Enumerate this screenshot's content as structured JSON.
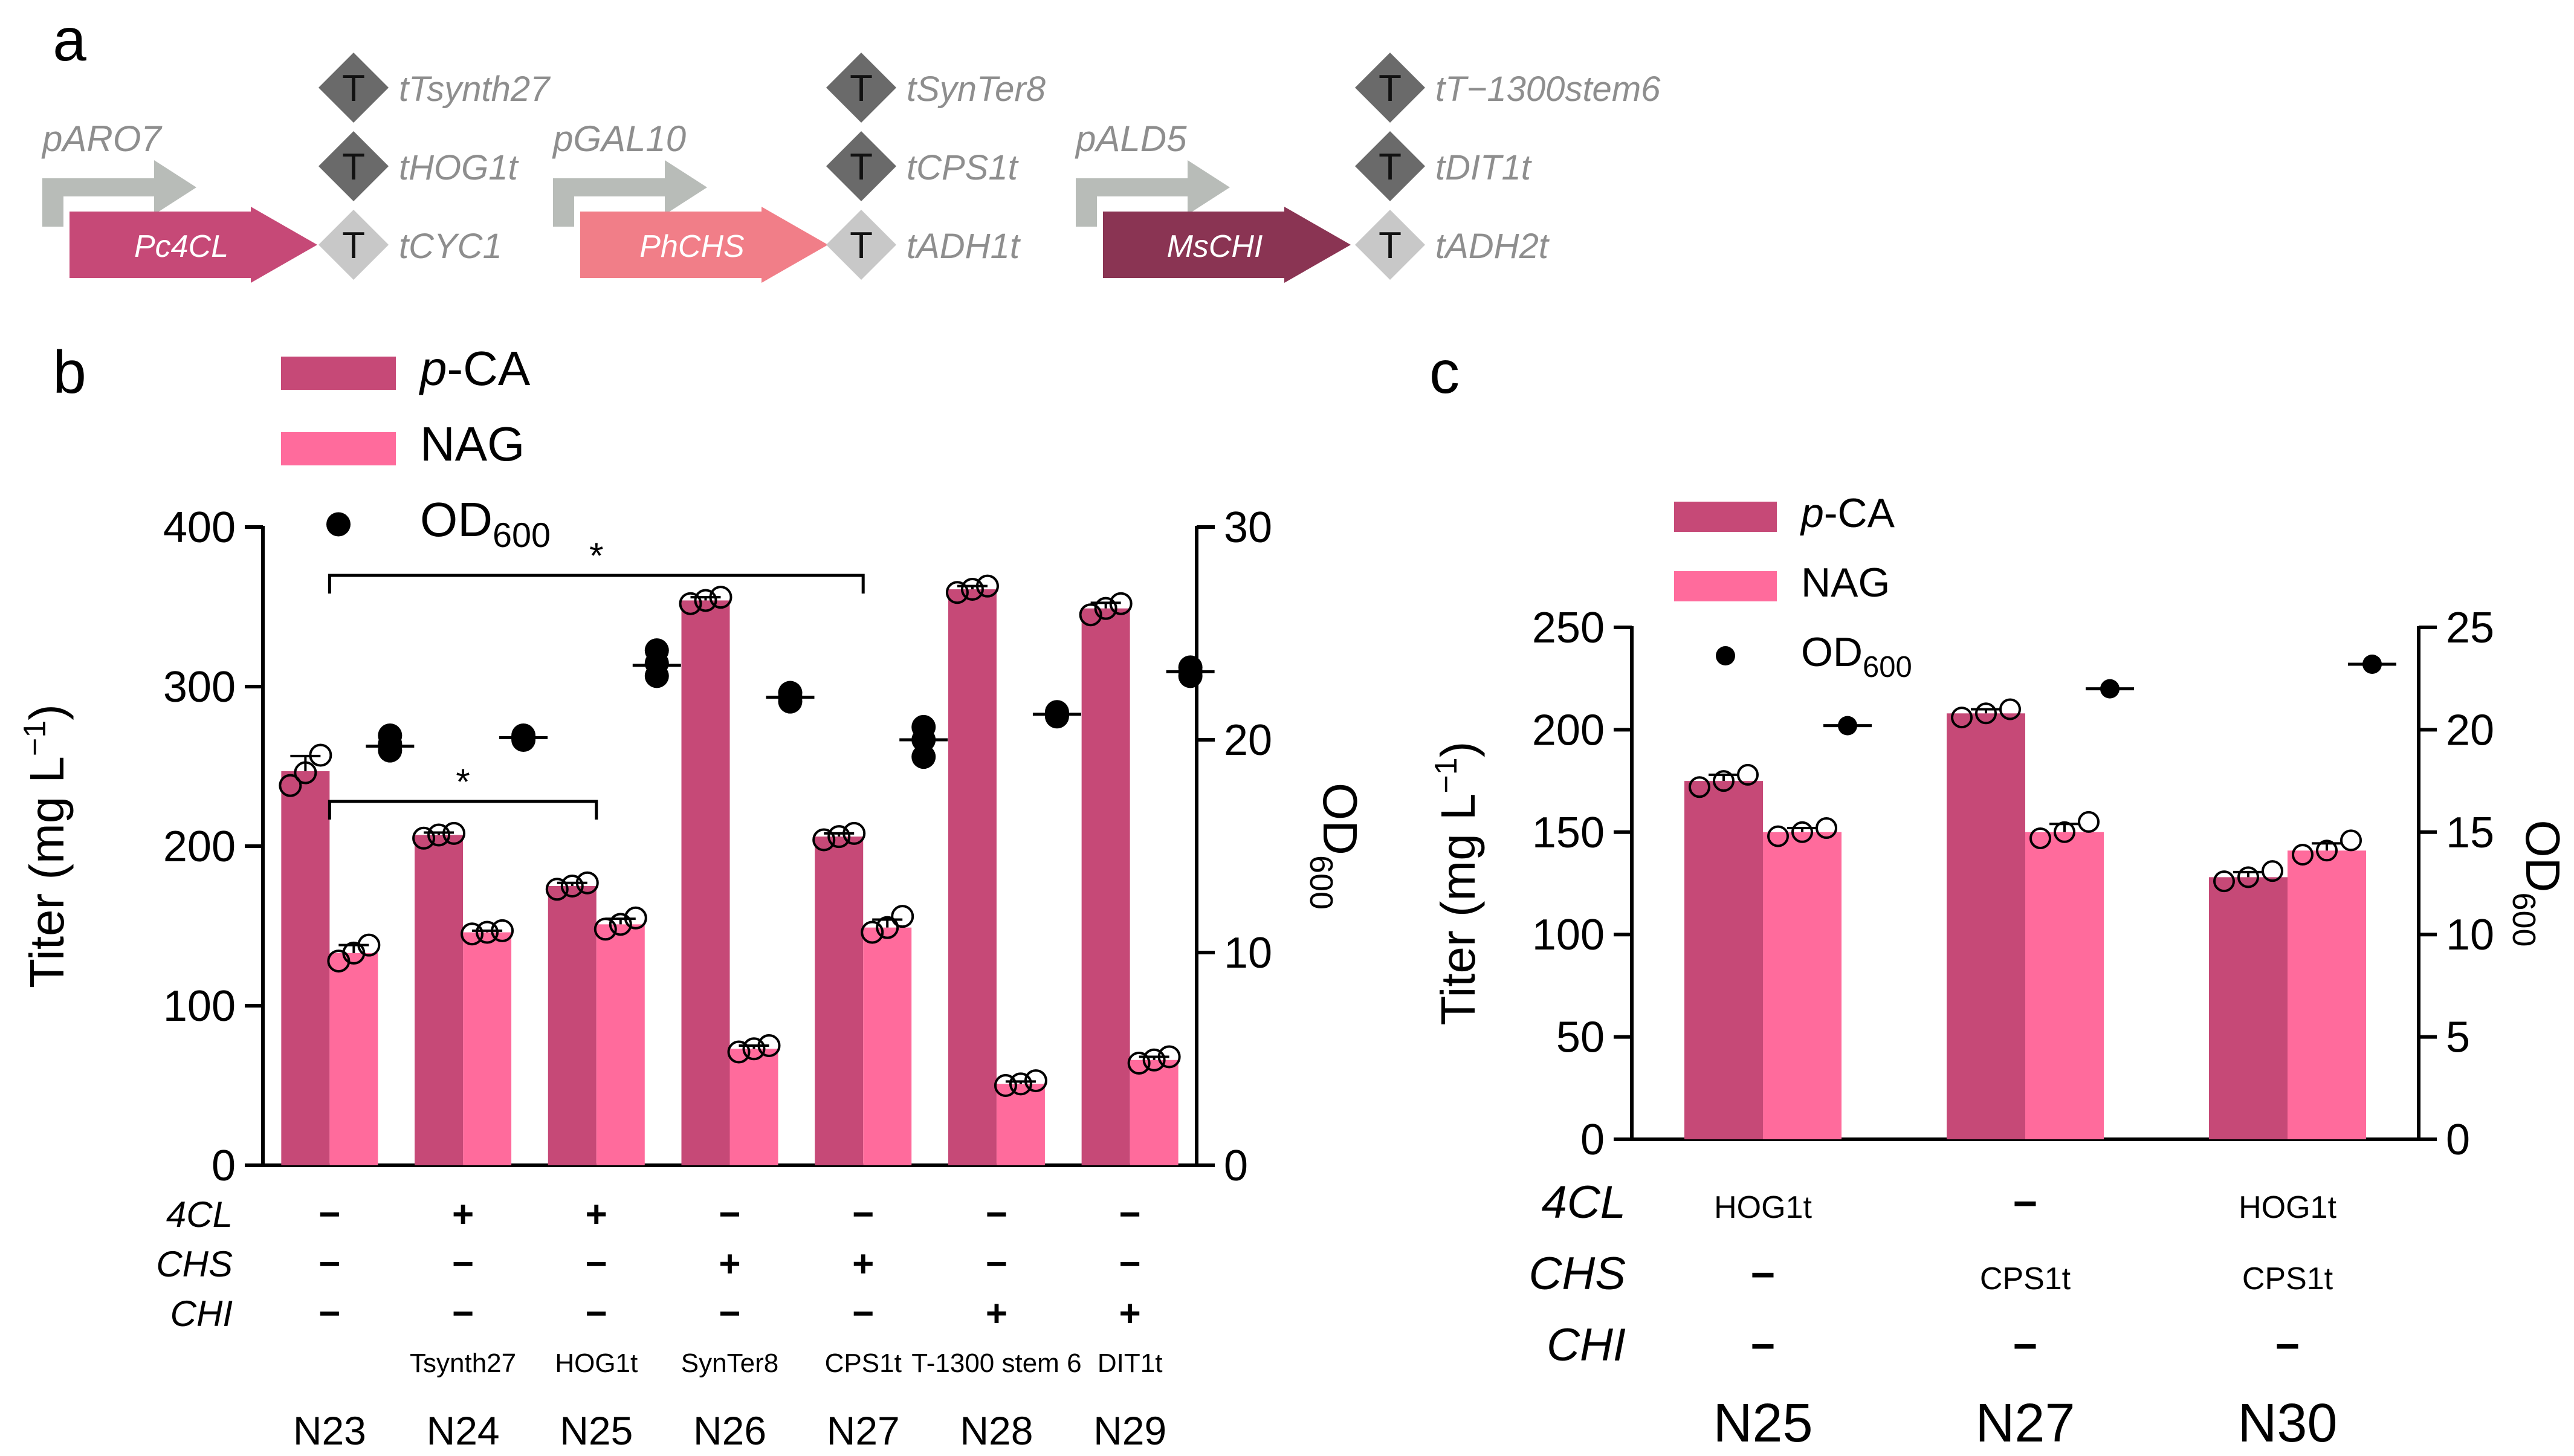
{
  "colors": {
    "pca": "#c64977",
    "nag": "#ff6b9c",
    "chi": "#8a3453",
    "chs": "#f17e88",
    "promoter": "#b8bcb8",
    "term_dark": "#6a6a6a",
    "term_light": "#c8c8c8",
    "italic_gray": "#8e8e8e"
  },
  "panel_a": {
    "label": "a",
    "cassettes": [
      {
        "promoter": "pARO7",
        "gene": "Pc4CL",
        "terminators": [
          "tTsynth27",
          "tHOG1t",
          "tCYC1"
        ]
      },
      {
        "promoter": "pGAL10",
        "gene": "PhCHS",
        "terminators": [
          "tSynTer8",
          "tCPS1t",
          "tADH1t"
        ]
      },
      {
        "promoter": "pALD5",
        "gene": "MsCHI",
        "terminators": [
          "tT−1300stem6",
          "tDIT1t",
          "tADH2t"
        ]
      }
    ],
    "terminator_symbol": "T"
  },
  "chart_data": [
    {
      "panel": "b",
      "type": "bar",
      "categories": [
        "N23",
        "N24",
        "N25",
        "N26",
        "N27",
        "N28",
        "N29"
      ],
      "series": [
        {
          "name": "p-CA",
          "values": [
            247,
            207,
            175,
            354,
            206,
            361,
            349
          ],
          "points": [
            [
              238,
              246,
              257
            ],
            [
              205,
              207,
              208
            ],
            [
              173,
              175,
              177
            ],
            [
              352,
              354,
              356
            ],
            [
              204,
              206,
              208
            ],
            [
              359,
              361,
              363
            ],
            [
              345,
              349,
              352
            ]
          ]
        },
        {
          "name": "NAG",
          "values": [
            133,
            146,
            151,
            73,
            149,
            51,
            66
          ],
          "points": [
            [
              128,
              133,
              138
            ],
            [
              145,
              146,
              147
            ],
            [
              148,
              151,
              155
            ],
            [
              71,
              73,
              75
            ],
            [
              146,
              149,
              156
            ],
            [
              50,
              51,
              53
            ],
            [
              64,
              66,
              68
            ]
          ]
        },
        {
          "name": "OD600",
          "axis": "right",
          "values": [
            19.7,
            20.1,
            23.5,
            22.0,
            20.0,
            21.2,
            23.2
          ],
          "points": [
            [
              19.5,
              19.8,
              20.2
            ],
            [
              20.0,
              20.1,
              20.2
            ],
            [
              23.0,
              23.6,
              24.2
            ],
            [
              21.8,
              22.0,
              22.2
            ],
            [
              19.2,
              20.0,
              20.6
            ],
            [
              21.1,
              21.2,
              21.3
            ],
            [
              23.0,
              23.2,
              23.4
            ]
          ]
        }
      ],
      "legend": {
        "pca": "p-CA",
        "pca_prefix": "p",
        "pca_suffix": "-CA",
        "nag": "NAG",
        "od": "OD",
        "od_sub": "600"
      },
      "ylabel": "Titer (mg L⁻¹)",
      "ylabel_main": "Titer (mg L",
      "ylabel_sup": "−1",
      "ylabel_close": ")",
      "y2label": "OD",
      "y2label_sub": "600",
      "ylim": [
        0,
        400
      ],
      "yticks": [
        "0",
        "100",
        "200",
        "300",
        "400"
      ],
      "y2lim": [
        0,
        30
      ],
      "y2ticks": [
        "0",
        "10",
        "20",
        "30"
      ],
      "significance": [
        {
          "from": "N23",
          "to": "N27",
          "label": "*"
        },
        {
          "from": "N23",
          "to": "N25",
          "label": "*"
        }
      ],
      "genotype_rows": [
        {
          "label": "4CL",
          "values": [
            "−",
            "+",
            "+",
            "−",
            "−",
            "−",
            "−"
          ]
        },
        {
          "label": "CHS",
          "values": [
            "−",
            "−",
            "−",
            "+",
            "+",
            "−",
            "−"
          ]
        },
        {
          "label": "CHI",
          "values": [
            "−",
            "−",
            "−",
            "−",
            "−",
            "+",
            "+"
          ]
        }
      ],
      "terminator_labels": [
        "",
        "Tsynth27",
        "HOG1t",
        "SynTer8",
        "CPS1t",
        "T-1300 stem 6",
        "DIT1t"
      ],
      "panel_label": "b"
    },
    {
      "panel": "c",
      "type": "bar",
      "categories": [
        "N25",
        "N27",
        "N30"
      ],
      "series": [
        {
          "name": "p-CA",
          "values": [
            175,
            208,
            128
          ],
          "points": [
            [
              172,
              175,
              178
            ],
            [
              206,
              208,
              210
            ],
            [
              126,
              128,
              131
            ]
          ]
        },
        {
          "name": "NAG",
          "values": [
            150,
            150,
            141
          ],
          "points": [
            [
              148,
              150,
              152
            ],
            [
              147,
              150,
              155
            ],
            [
              139,
              141,
              146
            ]
          ]
        },
        {
          "name": "OD600",
          "axis": "right",
          "values": [
            20.2,
            22.0,
            23.2
          ],
          "points": [
            [
              20.2
            ],
            [
              22.0
            ],
            [
              23.2
            ]
          ]
        }
      ],
      "legend": {
        "pca": "p-CA",
        "pca_prefix": "p",
        "pca_suffix": "-CA",
        "nag": "NAG",
        "od": "OD",
        "od_sub": "600"
      },
      "ylabel": "Titer (mg L⁻¹)",
      "ylabel_main": "Titer (mg L",
      "ylabel_sup": "−1",
      "ylabel_close": ")",
      "y2label": "OD",
      "y2label_sub": "600",
      "ylim": [
        0,
        250
      ],
      "yticks": [
        "0",
        "50",
        "100",
        "150",
        "200",
        "250"
      ],
      "y2lim": [
        0,
        25
      ],
      "y2ticks": [
        "0",
        "5",
        "10",
        "15",
        "20",
        "25"
      ],
      "genotype_rows": [
        {
          "label": "4CL",
          "values": [
            "HOG1t",
            "−",
            "HOG1t"
          ]
        },
        {
          "label": "CHS",
          "values": [
            "−",
            "CPS1t",
            "CPS1t"
          ]
        },
        {
          "label": "CHI",
          "values": [
            "−",
            "−",
            "−"
          ]
        }
      ],
      "panel_label": "c"
    }
  ]
}
